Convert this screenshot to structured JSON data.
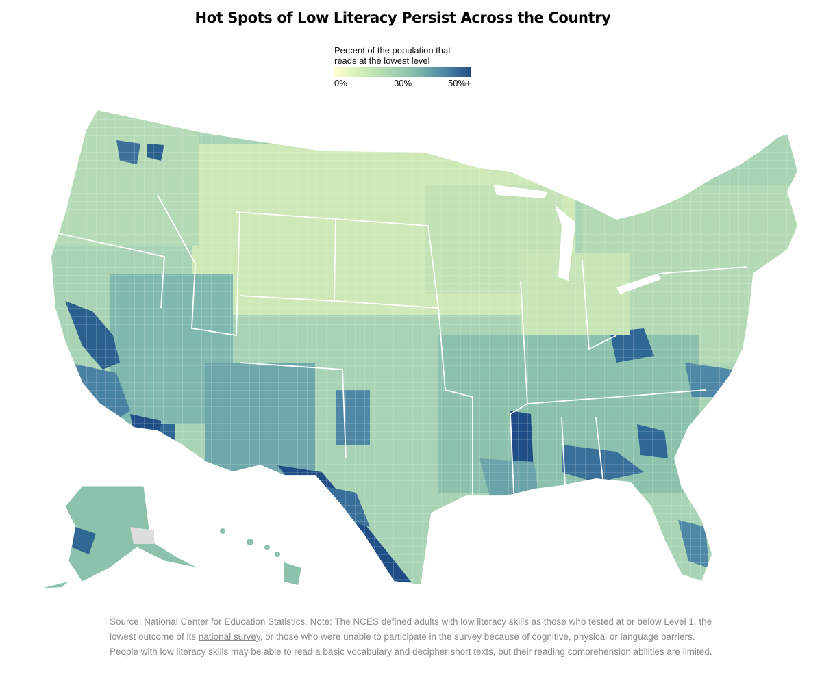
{
  "title": "Hot Spots of Low Literacy Persist Across the Country",
  "legend": {
    "title_line1": "Percent of the population that",
    "title_line2": "reads at the lowest level",
    "ticks": [
      "0%",
      "30%",
      "50%+"
    ],
    "colors": [
      "#ffffcc",
      "#c7e9b4",
      "#8cc2ac",
      "#4f88a6",
      "#1f4e86"
    ]
  },
  "map": {
    "region": "United States counties",
    "border_color": "#ffffff",
    "no_data_color": "#dddddd",
    "hot_spots": [
      "South Texas border",
      "Mississippi Delta",
      "Central Valley California",
      "Southern California",
      "Appalachian Kentucky",
      "Black Belt Georgia/Alabama",
      "New Mexico",
      "Southwest Alaska"
    ]
  },
  "source": {
    "text_before": "Source: National Center for Education Statistics. Note: The NCES defined adults with low literacy skills as those who tested at or below Level 1, the lowest outcome of its ",
    "link_text": "national survey",
    "text_after": ", or those who were unable to participate in the survey because of cognitive, physical or language barriers. People with low literacy skills may be able to read a basic vocabulary and decipher short texts, but their reading comprehension abilities are limited."
  }
}
